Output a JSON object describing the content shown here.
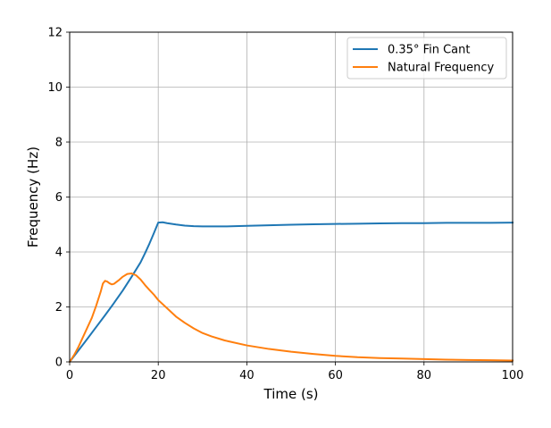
{
  "chart_data": {
    "type": "line",
    "xlabel": "Time (s)",
    "ylabel": "Frequency (Hz)",
    "xlim": [
      0,
      100
    ],
    "ylim": [
      0,
      12
    ],
    "xticks": [
      0,
      20,
      40,
      60,
      80,
      100
    ],
    "yticks": [
      0,
      2,
      4,
      6,
      8,
      10,
      12
    ],
    "grid": true,
    "legend_position": "top-right",
    "series": [
      {
        "name": "0.35° Fin Cant",
        "color": "#1f77b4",
        "x": [
          0,
          2,
          4,
          6,
          8,
          10,
          12,
          14,
          16,
          17,
          18,
          19,
          20,
          21,
          22,
          24,
          26,
          28,
          30,
          32,
          35,
          40,
          45,
          50,
          55,
          60,
          65,
          70,
          75,
          80,
          85,
          90,
          95,
          100
        ],
        "y": [
          0,
          0.42,
          0.84,
          1.27,
          1.7,
          2.14,
          2.6,
          3.1,
          3.62,
          3.95,
          4.3,
          4.68,
          5.07,
          5.08,
          5.05,
          5.0,
          4.96,
          4.94,
          4.93,
          4.93,
          4.93,
          4.95,
          4.97,
          4.99,
          5.01,
          5.02,
          5.03,
          5.04,
          5.05,
          5.05,
          5.06,
          5.06,
          5.06,
          5.07
        ]
      },
      {
        "name": "Natural Frequency",
        "color": "#ff7f0e",
        "x": [
          0,
          1,
          2,
          3,
          4,
          5,
          6,
          7,
          7.5,
          8,
          8.5,
          9,
          9.5,
          10,
          11,
          12,
          13,
          14,
          15,
          16,
          17,
          18,
          19,
          20,
          22,
          24,
          26,
          28,
          30,
          32,
          35,
          40,
          45,
          50,
          55,
          60,
          65,
          70,
          75,
          80,
          85,
          90,
          95,
          100
        ],
        "y": [
          0,
          0.25,
          0.55,
          0.9,
          1.25,
          1.6,
          2.05,
          2.55,
          2.85,
          2.95,
          2.92,
          2.86,
          2.82,
          2.84,
          2.96,
          3.1,
          3.2,
          3.22,
          3.15,
          3.0,
          2.8,
          2.62,
          2.45,
          2.25,
          1.95,
          1.65,
          1.42,
          1.22,
          1.05,
          0.93,
          0.78,
          0.6,
          0.47,
          0.37,
          0.29,
          0.22,
          0.17,
          0.14,
          0.12,
          0.1,
          0.08,
          0.07,
          0.06,
          0.05
        ]
      }
    ]
  }
}
